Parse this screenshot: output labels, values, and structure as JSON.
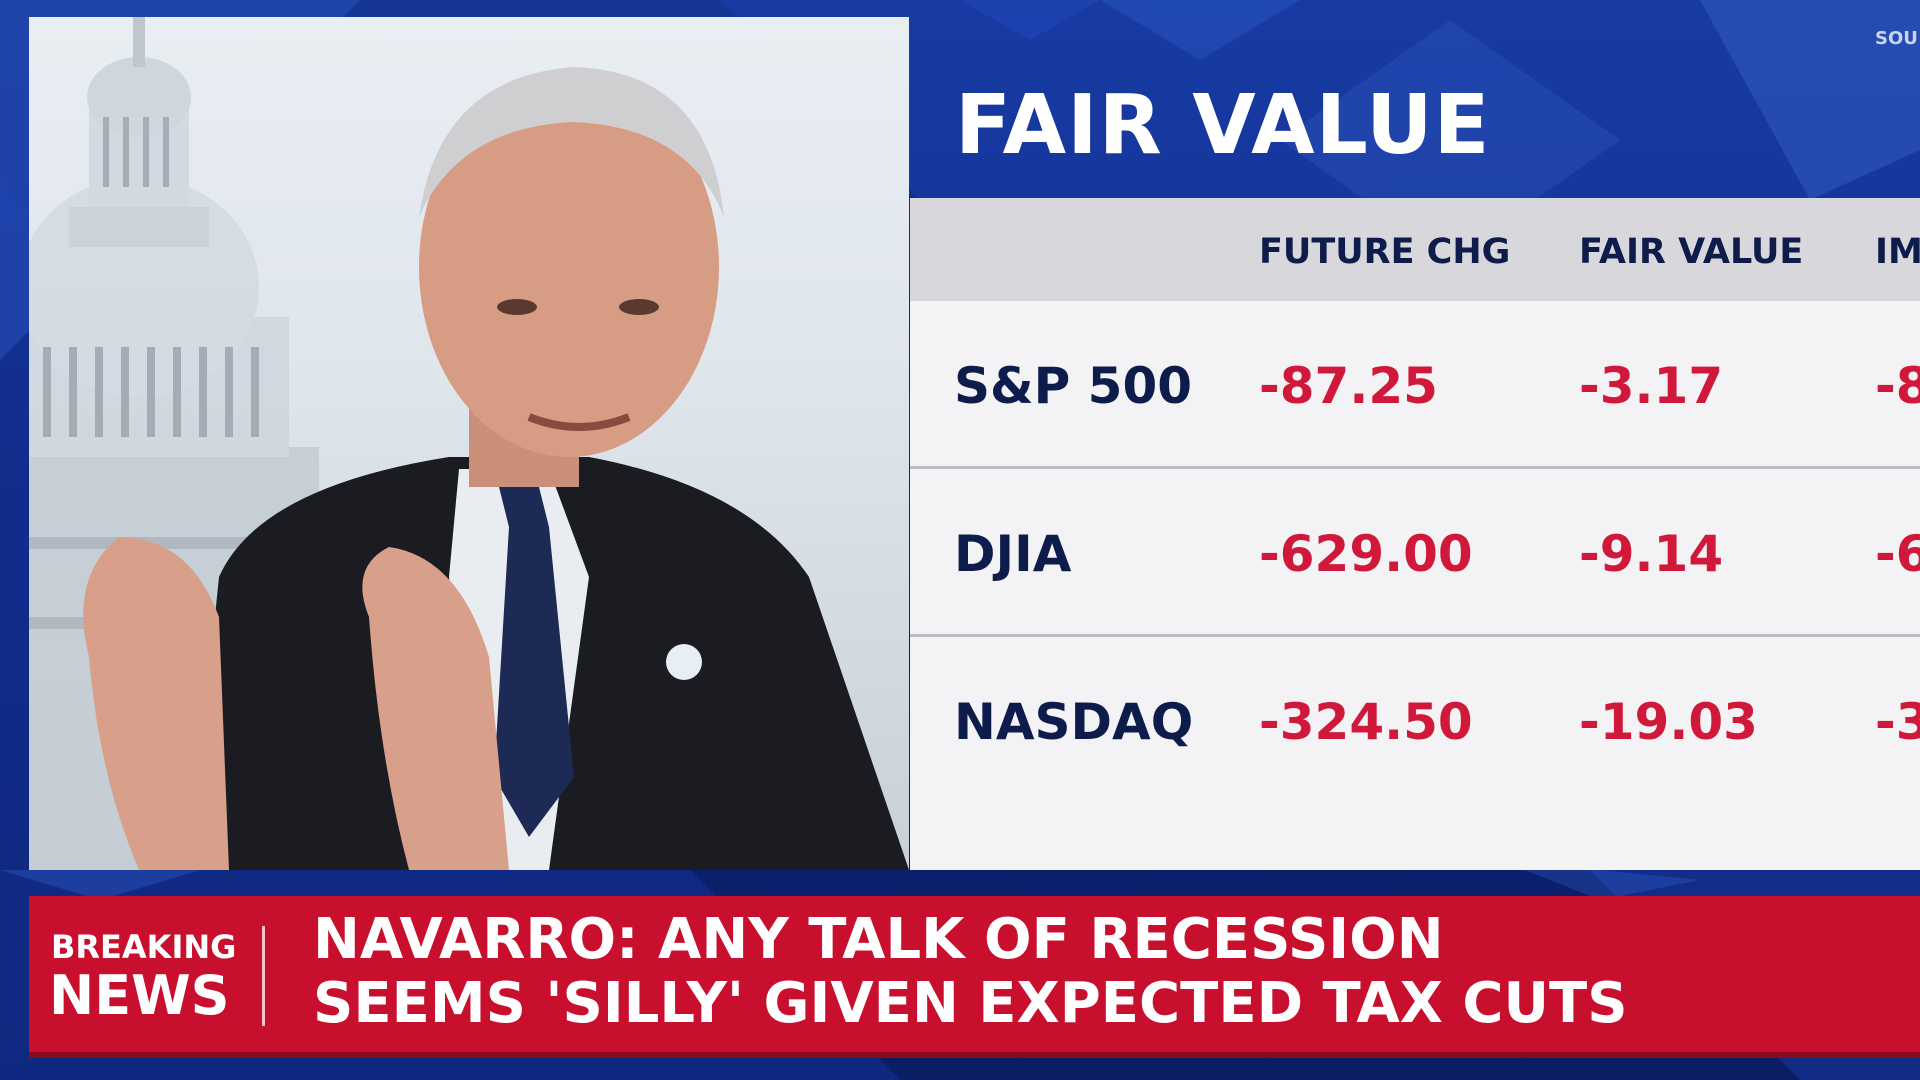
{
  "panel": {
    "title": "FAIR VALUE",
    "source_partial": "SOU",
    "columns": [
      "FUTURE CHG",
      "FAIR VALUE",
      "IM"
    ],
    "rows": [
      {
        "name": "S&P 500",
        "future_chg": "-87.25",
        "fair_value": "-3.17",
        "implied": "-8"
      },
      {
        "name": "DJIA",
        "future_chg": "-629.00",
        "fair_value": "-9.14",
        "implied": "-6"
      },
      {
        "name": "NASDAQ",
        "future_chg": "-324.50",
        "fair_value": "-19.03",
        "implied": "-3"
      }
    ]
  },
  "news": {
    "breaking": "BREAKING",
    "news": "NEWS",
    "headline_line1": "NAVARRO: ANY TALK OF RECESSION",
    "headline_line2": "SEEMS 'SILLY' GIVEN EXPECTED TAX CUTS"
  },
  "colors": {
    "background_blue": "#0a1f66",
    "panel_bg": "#f3f3f5",
    "header_bg": "#d8d8dc",
    "negative_red": "#d0193a",
    "label_navy": "#0d1c4a",
    "bar_red": "#c8102e"
  }
}
